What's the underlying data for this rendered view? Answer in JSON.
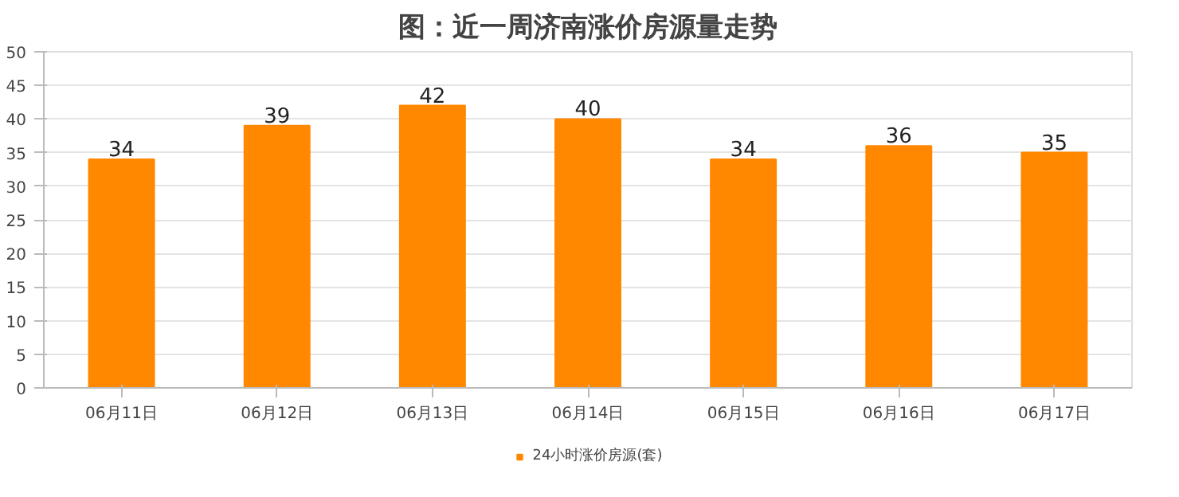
{
  "chart_data": {
    "type": "bar",
    "title": "图：近一周济南涨价房源量走势",
    "categories": [
      "06月11日",
      "06月12日",
      "06月13日",
      "06月14日",
      "06月15日",
      "06月16日",
      "06月17日"
    ],
    "series": [
      {
        "name": "24小时涨价房源(套)",
        "color": "#ff8800",
        "values": [
          34,
          39,
          42,
          40,
          34,
          36,
          35
        ]
      }
    ],
    "ylim": [
      0,
      50
    ],
    "yticks": [
      0,
      5,
      10,
      15,
      20,
      25,
      30,
      35,
      40,
      45,
      50
    ],
    "grid": "y",
    "legend": "bottom",
    "data_labels": true
  }
}
